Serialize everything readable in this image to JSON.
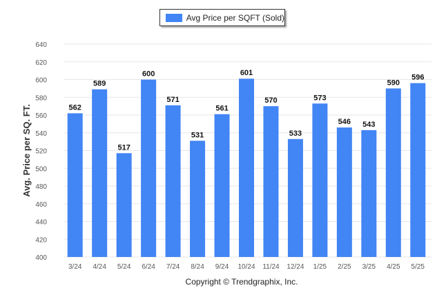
{
  "legend": {
    "label": "Avg Price per SQFT (Sold)"
  },
  "footer": {
    "copyright": "Copyright © Trendgraphix, Inc."
  },
  "colors": {
    "bar": "#4285f4",
    "grid": "#e6e6e6",
    "axis_text": "#555555",
    "label_text": "#111111"
  },
  "chart_data": {
    "type": "bar",
    "categories": [
      "3/24",
      "4/24",
      "5/24",
      "6/24",
      "7/24",
      "8/24",
      "9/24",
      "10/24",
      "11/24",
      "12/24",
      "1/25",
      "2/25",
      "3/25",
      "4/25",
      "5/25"
    ],
    "series": [
      {
        "name": "Avg Price per SQFT (Sold)",
        "values": [
          562,
          589,
          517,
          600,
          571,
          531,
          561,
          601,
          570,
          533,
          573,
          546,
          543,
          590,
          596
        ]
      }
    ],
    "ylabel": "Avg. Price per SQ. FT.",
    "xlabel": "",
    "ylim": [
      400,
      640
    ],
    "yticks": [
      400,
      420,
      440,
      460,
      480,
      500,
      520,
      540,
      560,
      580,
      600,
      620,
      640
    ],
    "grid": true,
    "data_labels": true,
    "legend_position": "top-center"
  }
}
